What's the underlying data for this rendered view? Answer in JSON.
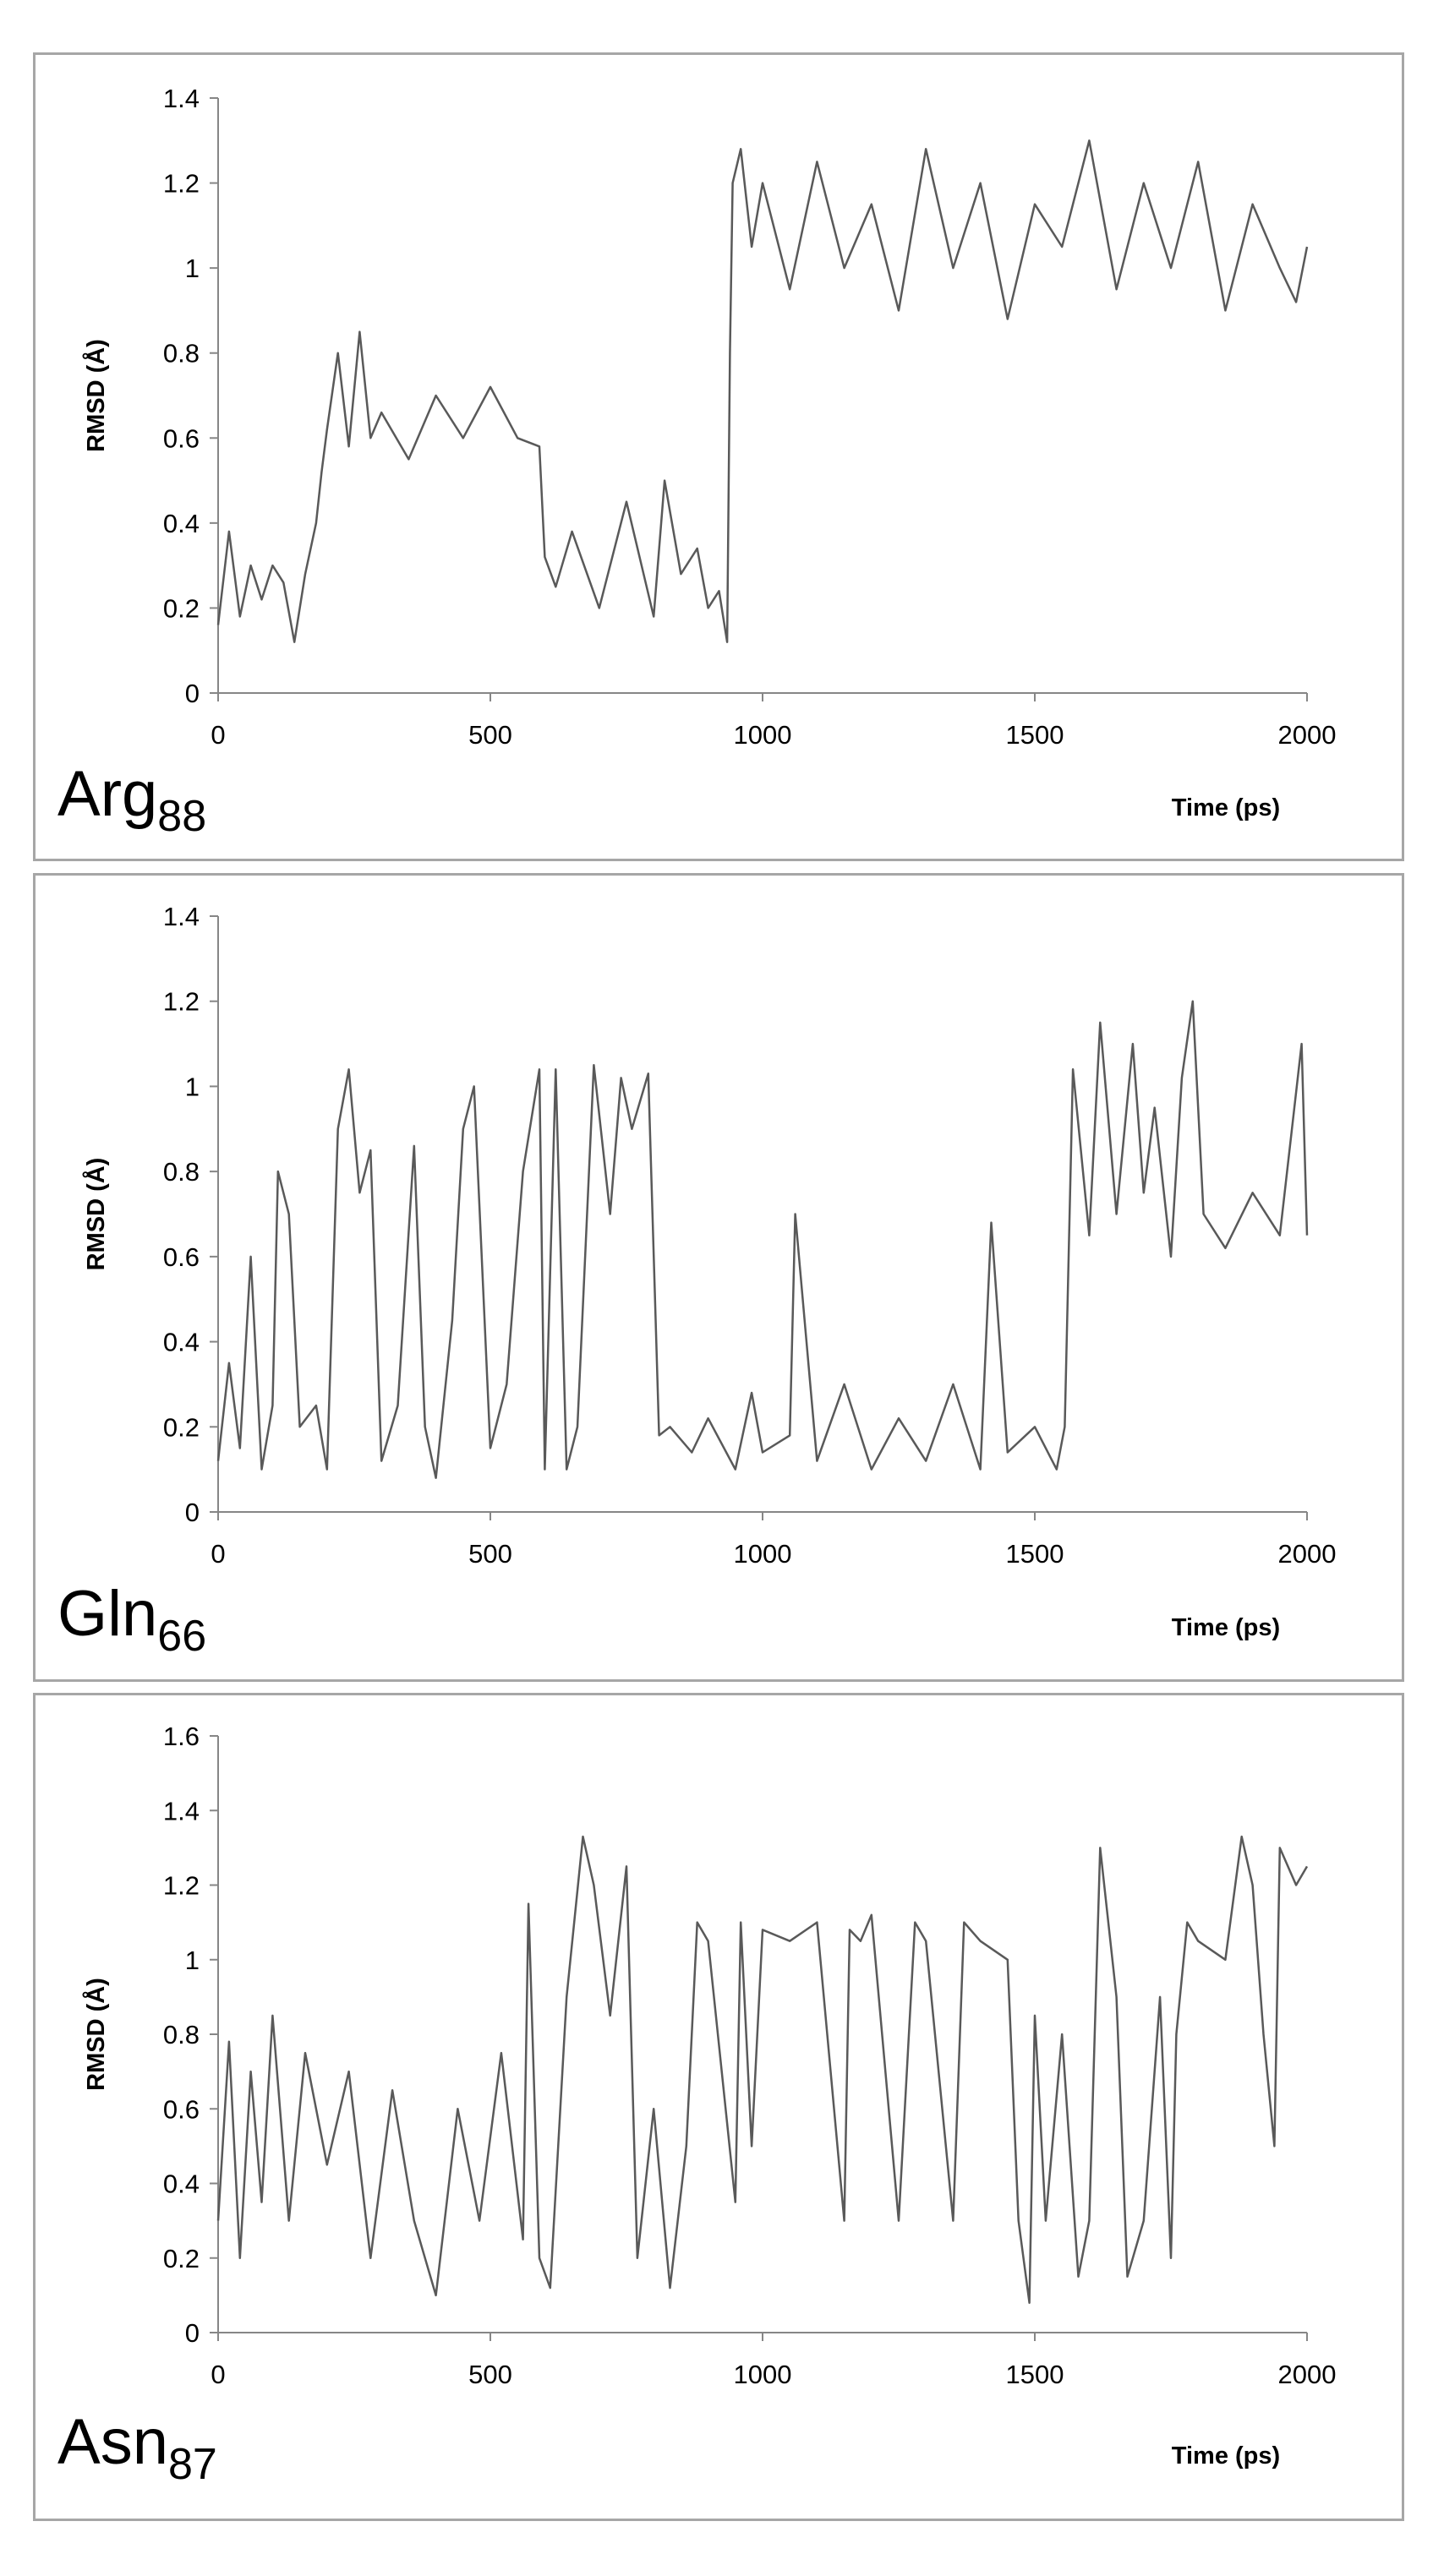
{
  "chart_data": [
    {
      "type": "line",
      "panel_label": "Arg",
      "panel_label_sub": "88",
      "ylabel": "RMSD (Å)",
      "xlabel": "Time (ps)",
      "xlim": [
        0,
        2000
      ],
      "ylim": [
        0,
        1.4
      ],
      "xticks": [
        "0",
        "500",
        "1000",
        "1500",
        "2000"
      ],
      "yticks": [
        "0",
        "0.2",
        "0.4",
        "0.6",
        "0.8",
        "1",
        "1.2",
        "1.4"
      ],
      "ytick_values": [
        0,
        0.2,
        0.4,
        0.6,
        0.8,
        1.0,
        1.2,
        1.4
      ],
      "grid": false,
      "line_color": "#595959",
      "series": [
        {
          "x": [
            0,
            20,
            40,
            60,
            80,
            100,
            120,
            140,
            160,
            180,
            190,
            200,
            220,
            240,
            260,
            280,
            300,
            350,
            400,
            450,
            500,
            550,
            590,
            600,
            620,
            650,
            700,
            750,
            800,
            820,
            850,
            880,
            900,
            920,
            935,
            940,
            945,
            960,
            980,
            1000,
            1050,
            1100,
            1150,
            1200,
            1250,
            1300,
            1350,
            1400,
            1450,
            1500,
            1550,
            1600,
            1650,
            1700,
            1750,
            1800,
            1850,
            1900,
            1950,
            1980,
            2000
          ],
          "y": [
            0.16,
            0.38,
            0.18,
            0.3,
            0.22,
            0.3,
            0.26,
            0.12,
            0.28,
            0.4,
            0.52,
            0.62,
            0.8,
            0.58,
            0.85,
            0.6,
            0.66,
            0.55,
            0.7,
            0.6,
            0.72,
            0.6,
            0.58,
            0.32,
            0.25,
            0.38,
            0.2,
            0.45,
            0.18,
            0.5,
            0.28,
            0.34,
            0.2,
            0.24,
            0.12,
            0.8,
            1.2,
            1.28,
            1.05,
            1.2,
            0.95,
            1.25,
            1.0,
            1.15,
            0.9,
            1.28,
            1.0,
            1.2,
            0.88,
            1.15,
            1.05,
            1.3,
            0.95,
            1.2,
            1.0,
            1.25,
            0.9,
            1.15,
            1.0,
            0.92,
            1.05
          ]
        }
      ]
    },
    {
      "type": "line",
      "panel_label": "Gln",
      "panel_label_sub": "66",
      "ylabel": "RMSD (Å)",
      "xlabel": "Time (ps)",
      "xlim": [
        0,
        2000
      ],
      "ylim": [
        0,
        1.4
      ],
      "xticks": [
        "0",
        "500",
        "1000",
        "1500",
        "2000"
      ],
      "yticks": [
        "0",
        "0.2",
        "0.4",
        "0.6",
        "0.8",
        "1",
        "1.2",
        "1.4"
      ],
      "ytick_values": [
        0,
        0.2,
        0.4,
        0.6,
        0.8,
        1.0,
        1.2,
        1.4
      ],
      "grid": false,
      "line_color": "#595959",
      "series": [
        {
          "x": [
            0,
            20,
            40,
            60,
            80,
            100,
            110,
            130,
            150,
            180,
            200,
            220,
            240,
            260,
            280,
            300,
            330,
            360,
            380,
            400,
            430,
            450,
            470,
            500,
            530,
            560,
            590,
            600,
            620,
            640,
            660,
            690,
            720,
            740,
            760,
            790,
            810,
            830,
            870,
            900,
            950,
            980,
            1000,
            1050,
            1060,
            1100,
            1150,
            1200,
            1250,
            1300,
            1350,
            1400,
            1420,
            1450,
            1500,
            1540,
            1555,
            1570,
            1600,
            1620,
            1650,
            1680,
            1700,
            1720,
            1750,
            1770,
            1790,
            1810,
            1850,
            1900,
            1950,
            1990,
            2000
          ],
          "y": [
            0.12,
            0.35,
            0.15,
            0.6,
            0.1,
            0.25,
            0.8,
            0.7,
            0.2,
            0.25,
            0.1,
            0.9,
            1.04,
            0.75,
            0.85,
            0.12,
            0.25,
            0.86,
            0.2,
            0.08,
            0.45,
            0.9,
            1.0,
            0.15,
            0.3,
            0.8,
            1.04,
            0.1,
            1.04,
            0.1,
            0.2,
            1.05,
            0.7,
            1.02,
            0.9,
            1.03,
            0.18,
            0.2,
            0.14,
            0.22,
            0.1,
            0.28,
            0.14,
            0.18,
            0.7,
            0.12,
            0.3,
            0.1,
            0.22,
            0.12,
            0.3,
            0.1,
            0.68,
            0.14,
            0.2,
            0.1,
            0.2,
            1.04,
            0.65,
            1.15,
            0.7,
            1.1,
            0.75,
            0.95,
            0.6,
            1.02,
            1.2,
            0.7,
            0.62,
            0.75,
            0.65,
            1.1,
            0.65
          ]
        }
      ]
    },
    {
      "type": "line",
      "panel_label": "Asn",
      "panel_label_sub": "87",
      "ylabel": "RMSD (Å)",
      "xlabel": "Time (ps)",
      "xlim": [
        0,
        2000
      ],
      "ylim": [
        0,
        1.6
      ],
      "xticks": [
        "0",
        "500",
        "1000",
        "1500",
        "2000"
      ],
      "yticks": [
        "0",
        "0.2",
        "0.4",
        "0.6",
        "0.8",
        "1",
        "1.2",
        "1.4",
        "1.6"
      ],
      "ytick_values": [
        0,
        0.2,
        0.4,
        0.6,
        0.8,
        1.0,
        1.2,
        1.4,
        1.6
      ],
      "grid": false,
      "line_color": "#595959",
      "series": [
        {
          "x": [
            0,
            20,
            40,
            60,
            80,
            100,
            130,
            160,
            200,
            240,
            280,
            320,
            360,
            400,
            440,
            480,
            520,
            560,
            570,
            590,
            610,
            640,
            670,
            690,
            720,
            750,
            770,
            800,
            830,
            860,
            880,
            900,
            950,
            960,
            980,
            1000,
            1050,
            1100,
            1150,
            1160,
            1180,
            1200,
            1250,
            1280,
            1300,
            1350,
            1370,
            1400,
            1450,
            1470,
            1490,
            1500,
            1520,
            1550,
            1580,
            1600,
            1620,
            1650,
            1670,
            1700,
            1730,
            1750,
            1760,
            1780,
            1800,
            1850,
            1880,
            1900,
            1920,
            1940,
            1950,
            1980,
            2000
          ],
          "y": [
            0.3,
            0.78,
            0.2,
            0.7,
            0.35,
            0.85,
            0.3,
            0.75,
            0.45,
            0.7,
            0.2,
            0.65,
            0.3,
            0.1,
            0.6,
            0.3,
            0.75,
            0.25,
            1.15,
            0.2,
            0.12,
            0.9,
            1.33,
            1.2,
            0.85,
            1.25,
            0.2,
            0.6,
            0.12,
            0.5,
            1.1,
            1.05,
            0.35,
            1.1,
            0.5,
            1.08,
            1.05,
            1.1,
            0.3,
            1.08,
            1.05,
            1.12,
            0.3,
            1.1,
            1.05,
            0.3,
            1.1,
            1.05,
            1.0,
            0.3,
            0.08,
            0.85,
            0.3,
            0.8,
            0.15,
            0.3,
            1.3,
            0.9,
            0.15,
            0.3,
            0.9,
            0.2,
            0.8,
            1.1,
            1.05,
            1.0,
            1.33,
            1.2,
            0.8,
            0.5,
            1.3,
            1.2,
            1.25
          ]
        }
      ]
    }
  ]
}
